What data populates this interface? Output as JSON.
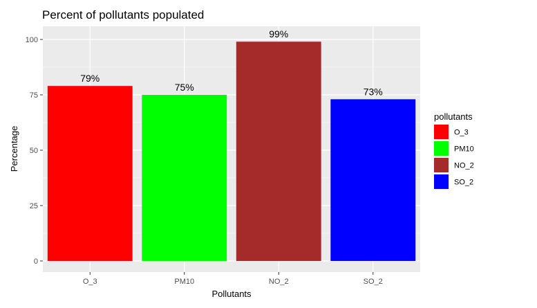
{
  "chart_data": {
    "type": "bar",
    "title": "Percent of pollutants populated",
    "xlabel": "Pollutants",
    "ylabel": "Percentage",
    "categories": [
      "O_3",
      "PM10",
      "NO_2",
      "SO_2"
    ],
    "values": [
      79,
      75,
      99,
      73
    ],
    "data_labels": [
      "79%",
      "75%",
      "99%",
      "73%"
    ],
    "colors": [
      "#ff0000",
      "#00ff00",
      "#a52a2a",
      "#0000ff"
    ],
    "ylim": [
      0,
      100
    ],
    "yticks": [
      0,
      25,
      50,
      75,
      100
    ],
    "grid": true,
    "legend": {
      "title": "pollutants",
      "placement": "right",
      "entries": [
        "O_3",
        "PM10",
        "NO_2",
        "SO_2"
      ]
    }
  }
}
